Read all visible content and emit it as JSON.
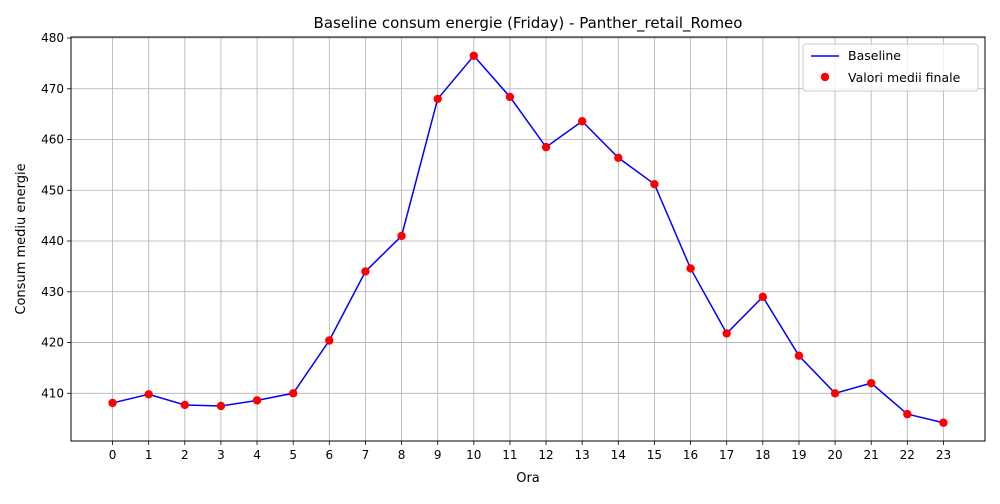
{
  "chart_data": {
    "type": "line",
    "title": "Baseline consum energie (Friday) - Panther_retail_Romeo",
    "xlabel": "Ora",
    "ylabel": "Consum mediu energie",
    "x": [
      0,
      1,
      2,
      3,
      4,
      5,
      6,
      7,
      8,
      9,
      10,
      11,
      12,
      13,
      14,
      15,
      16,
      17,
      18,
      19,
      20,
      21,
      22,
      23
    ],
    "xlim": [
      -1.15,
      24.15
    ],
    "ylim": [
      400.6,
      480.2
    ],
    "yticks": [
      410,
      420,
      430,
      440,
      450,
      460,
      470,
      480
    ],
    "grid": true,
    "legend_position": "top-right",
    "series": [
      {
        "name": "Baseline",
        "kind": "line",
        "color": "#0000ff",
        "values": [
          408.1,
          409.8,
          407.7,
          407.5,
          408.6,
          410.0,
          420.4,
          434.0,
          441.0,
          468.0,
          476.5,
          468.4,
          458.5,
          463.6,
          456.4,
          451.2,
          434.6,
          421.8,
          429.0,
          417.4,
          410.0,
          412.0,
          405.9,
          404.2
        ]
      },
      {
        "name": "Valori medii finale",
        "kind": "scatter",
        "color": "#ff0000",
        "values": [
          408.1,
          409.8,
          407.7,
          407.5,
          408.6,
          410.0,
          420.4,
          434.0,
          441.0,
          468.0,
          476.5,
          468.4,
          458.5,
          463.6,
          456.4,
          451.2,
          434.6,
          421.8,
          429.0,
          417.4,
          410.0,
          412.0,
          405.9,
          404.2
        ]
      }
    ]
  }
}
